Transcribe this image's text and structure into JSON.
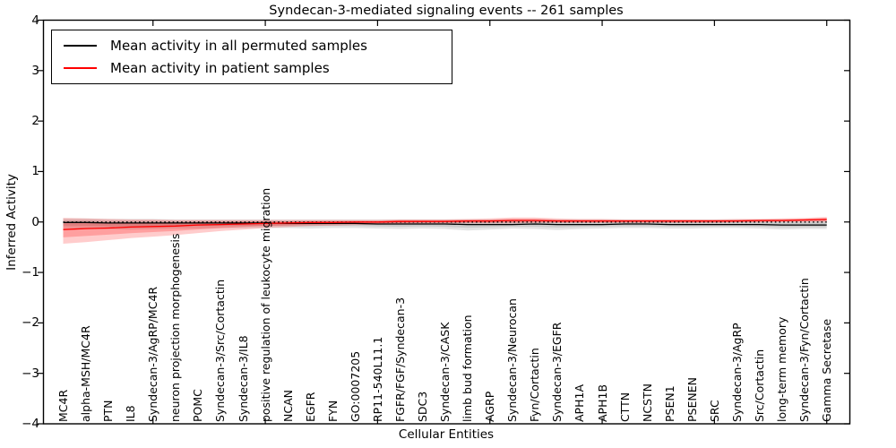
{
  "title": "Syndecan-3-mediated signaling events -- 261 samples",
  "legend": {
    "items": [
      {
        "label": "Mean activity in all permuted samples",
        "color": "#000000"
      },
      {
        "label": "Mean activity in patient samples",
        "color": "#ff0000"
      }
    ]
  },
  "y_axis": {
    "label": "Inferred Activity",
    "tick_labels": [
      "4",
      "3",
      "2",
      "1",
      "0",
      "−1",
      "−2",
      "−3",
      "−4"
    ]
  },
  "x_axis": {
    "label": "Cellular Entities"
  },
  "chart_data": {
    "type": "line",
    "title": "Syndecan-3-mediated signaling events -- 261 samples",
    "xlabel": "Cellular Entities",
    "ylabel": "Inferred Activity",
    "ylim": [
      -4,
      4
    ],
    "yticks": [
      4,
      3,
      2,
      1,
      0,
      -1,
      -2,
      -3,
      -4
    ],
    "xtick_indices": [
      4,
      9,
      14,
      19,
      24,
      29,
      34
    ],
    "zero_line": 0,
    "legend_position": "upper left",
    "grid": false,
    "categories": [
      "MC4R",
      "alpha-MSH/MC4R",
      "PTN",
      "IL8",
      "Syndecan-3/AgRP/MC4R",
      "neuron projection morphogenesis",
      "POMC",
      "Syndecan-3/Src/Cortactin",
      "Syndecan-3/IL8",
      "positive regulation of leukocyte migration",
      "NCAN",
      "EGFR",
      "FYN",
      "GO:0007205",
      "RP11-540L11.1",
      "FGFR/FGF/Syndecan-3",
      "SDC3",
      "Syndecan-3/CASK",
      "limb bud formation",
      "AGRP",
      "Syndecan-3/Neurocan",
      "Fyn/Cortactin",
      "Syndecan-3/EGFR",
      "APH1A",
      "APH1B",
      "CTTN",
      "NCSTN",
      "PSEN1",
      "PSENEN",
      "SRC",
      "Syndecan-3/AgRP",
      "Src/Cortactin",
      "long-term memory",
      "Syndecan-3/Fyn/Cortactin",
      "Gamma Secretase"
    ],
    "series": [
      {
        "name": "Mean activity in all permuted samples",
        "color": "#000000",
        "values": [
          -0.01,
          -0.01,
          -0.02,
          -0.02,
          -0.02,
          -0.02,
          -0.02,
          -0.02,
          -0.02,
          -0.02,
          -0.03,
          -0.03,
          -0.03,
          -0.03,
          -0.04,
          -0.04,
          -0.04,
          -0.04,
          -0.05,
          -0.05,
          -0.05,
          -0.04,
          -0.05,
          -0.05,
          -0.05,
          -0.04,
          -0.04,
          -0.05,
          -0.05,
          -0.05,
          -0.05,
          -0.05,
          -0.06,
          -0.06,
          -0.06
        ]
      },
      {
        "name": "Mean activity in patient samples",
        "color": "#ff0000",
        "values": [
          -0.15,
          -0.13,
          -0.12,
          -0.1,
          -0.09,
          -0.08,
          -0.06,
          -0.05,
          -0.04,
          -0.03,
          -0.02,
          -0.01,
          -0.01,
          0.0,
          0.0,
          0.01,
          0.01,
          0.01,
          0.02,
          0.02,
          0.03,
          0.03,
          0.02,
          0.02,
          0.02,
          0.02,
          0.02,
          0.02,
          0.02,
          0.02,
          0.02,
          0.03,
          0.03,
          0.04,
          0.05
        ]
      }
    ],
    "bands": [
      {
        "name": "permuted-samples-range",
        "series": "Mean activity in all permuted samples",
        "color_outer": "rgba(0,0,0,0.11)",
        "color_inner": "rgba(0,0,0,0.10)",
        "upper": [
          0.07,
          0.07,
          0.06,
          0.06,
          0.06,
          0.05,
          0.05,
          0.05,
          0.05,
          0.05,
          0.05,
          0.05,
          0.05,
          0.05,
          0.05,
          0.05,
          0.05,
          0.05,
          0.05,
          0.05,
          0.05,
          0.05,
          0.05,
          0.05,
          0.05,
          0.05,
          0.05,
          0.05,
          0.05,
          0.05,
          0.05,
          0.05,
          0.05,
          0.05,
          0.06
        ],
        "lower": [
          -0.12,
          -0.13,
          -0.14,
          -0.15,
          -0.14,
          -0.13,
          -0.13,
          -0.12,
          -0.12,
          -0.12,
          -0.12,
          -0.13,
          -0.12,
          -0.12,
          -0.13,
          -0.14,
          -0.13,
          -0.14,
          -0.17,
          -0.15,
          -0.13,
          -0.14,
          -0.16,
          -0.14,
          -0.13,
          -0.12,
          -0.12,
          -0.13,
          -0.13,
          -0.12,
          -0.12,
          -0.13,
          -0.15,
          -0.14,
          -0.14
        ]
      },
      {
        "name": "patient-samples-range",
        "series": "Mean activity in patient samples",
        "color_outer": "rgba(255,0,0,0.20)",
        "color_inner": "rgba(255,0,0,0.22)",
        "upper": [
          0.08,
          0.07,
          0.06,
          0.05,
          0.05,
          0.04,
          0.04,
          0.04,
          0.04,
          0.04,
          0.04,
          0.04,
          0.04,
          0.04,
          0.04,
          0.05,
          0.05,
          0.05,
          0.06,
          0.07,
          0.09,
          0.09,
          0.07,
          0.06,
          0.06,
          0.05,
          0.05,
          0.05,
          0.05,
          0.05,
          0.06,
          0.06,
          0.07,
          0.08,
          0.1
        ],
        "lower": [
          -0.43,
          -0.4,
          -0.36,
          -0.32,
          -0.29,
          -0.26,
          -0.22,
          -0.18,
          -0.15,
          -0.12,
          -0.1,
          -0.08,
          -0.07,
          -0.06,
          -0.05,
          -0.04,
          -0.03,
          -0.03,
          -0.03,
          -0.03,
          -0.03,
          -0.02,
          -0.02,
          -0.02,
          -0.02,
          -0.02,
          -0.02,
          -0.02,
          -0.02,
          -0.02,
          -0.01,
          -0.01,
          0.0,
          0.0,
          0.0
        ]
      }
    ]
  }
}
